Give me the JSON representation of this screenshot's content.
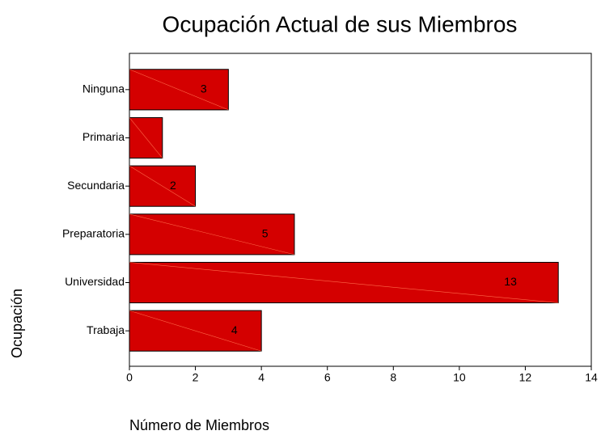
{
  "chart_data": {
    "type": "bar",
    "orientation": "horizontal",
    "title": "Ocupación Actual de sus Miembros",
    "xlabel": "Número de Miembros",
    "ylabel": "Ocupación",
    "categories": [
      "Ninguna",
      "Primaria",
      "Secundaria",
      "Preparatoria",
      "Universidad",
      "Trabaja"
    ],
    "values": [
      3,
      1,
      2,
      5,
      13,
      4
    ],
    "value_labels": [
      "3",
      null,
      "2",
      "5",
      "13",
      "4"
    ],
    "color": "#d40000",
    "xlim": [
      0,
      14
    ],
    "xticks": [
      0,
      2,
      4,
      6,
      8,
      10,
      12,
      14
    ],
    "grid": false
  }
}
